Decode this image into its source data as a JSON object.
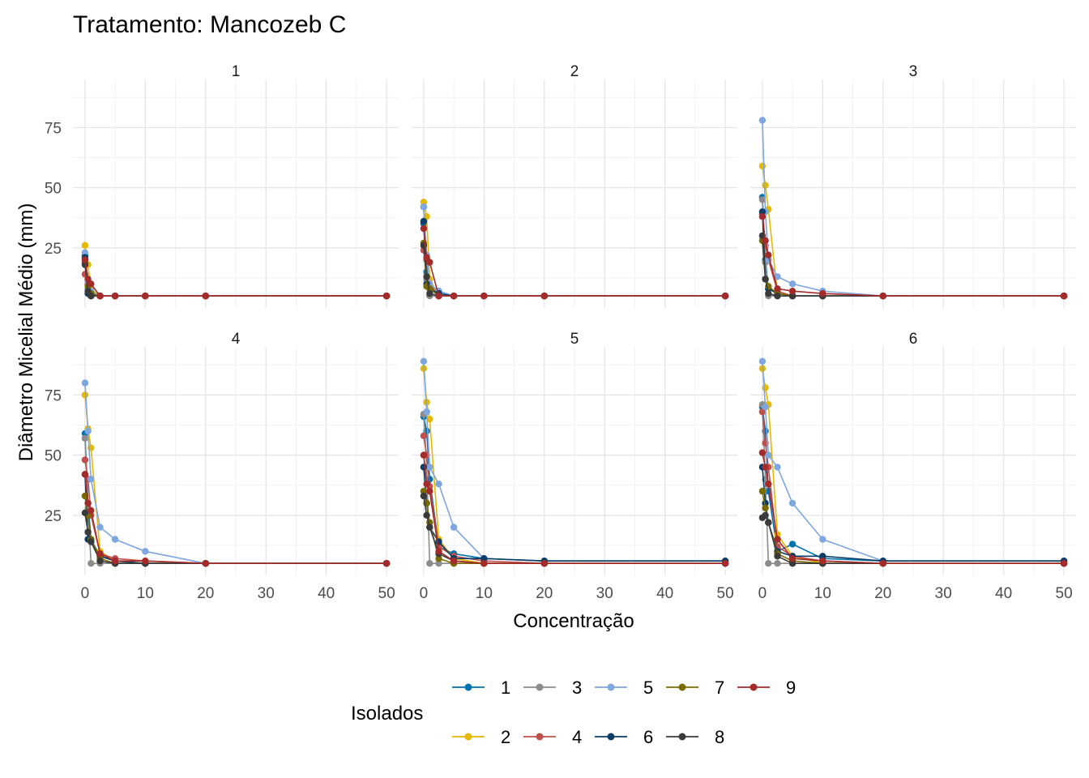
{
  "chart_data": {
    "type": "line",
    "title": "Tratamento: Mancozeb C",
    "xlabel": "Concentração",
    "ylabel": "Diâmetro Micelial Médio (mm)",
    "xlim": [
      -2,
      52
    ],
    "ylim": [
      0,
      95
    ],
    "x_ticks": [
      0,
      10,
      20,
      30,
      40,
      50
    ],
    "y_ticks": [
      25,
      50,
      75
    ],
    "x": [
      0,
      0.5,
      1,
      2.5,
      5,
      10,
      20,
      50
    ],
    "grid": true,
    "legend": {
      "title": "Isolados",
      "position": "bottom"
    },
    "colors": {
      "1": "#0072B2",
      "2": "#E6B800",
      "3": "#8C8C8C",
      "4": "#C0504D",
      "5": "#7EA6E0",
      "6": "#0B3D66",
      "7": "#7A6B00",
      "8": "#3A3A3A",
      "9": "#A52A2A"
    },
    "legend_items": [
      "1",
      "3",
      "5",
      "7",
      "9",
      "2",
      "4",
      "6",
      "8"
    ],
    "panels": [
      {
        "label": "1",
        "series": [
          {
            "name": "1",
            "values": [
              22,
              10,
              5,
              5,
              5,
              5,
              5,
              5
            ]
          },
          {
            "name": "2",
            "values": [
              26,
              18,
              8,
              5,
              5,
              5,
              5,
              5
            ]
          },
          {
            "name": "3",
            "values": [
              20,
              8,
              5,
              5,
              5,
              5,
              5,
              5
            ]
          },
          {
            "name": "4",
            "values": [
              14,
              10,
              6,
              5,
              5,
              5,
              5,
              5
            ]
          },
          {
            "name": "5",
            "values": [
              23,
              11,
              7,
              5,
              5,
              5,
              5,
              5
            ]
          },
          {
            "name": "6",
            "values": [
              21,
              6,
              5,
              5,
              5,
              5,
              5,
              5
            ]
          },
          {
            "name": "7",
            "values": [
              19,
              9,
              6,
              5,
              5,
              5,
              5,
              5
            ]
          },
          {
            "name": "8",
            "values": [
              18,
              7,
              5,
              5,
              5,
              5,
              5,
              5
            ]
          },
          {
            "name": "9",
            "values": [
              20,
              12,
              10,
              5,
              5,
              5,
              5,
              5
            ]
          }
        ]
      },
      {
        "label": "2",
        "series": [
          {
            "name": "1",
            "values": [
              35,
              15,
              9,
              7,
              5,
              5,
              5,
              5
            ]
          },
          {
            "name": "2",
            "values": [
              44,
              38,
              12,
              5,
              5,
              5,
              5,
              5
            ]
          },
          {
            "name": "3",
            "values": [
              42,
              12,
              5,
              5,
              5,
              5,
              5,
              5
            ]
          },
          {
            "name": "4",
            "values": [
              24,
              20,
              10,
              5,
              5,
              5,
              5,
              5
            ]
          },
          {
            "name": "5",
            "values": [
              42,
              22,
              10,
              7,
              5,
              5,
              5,
              5
            ]
          },
          {
            "name": "6",
            "values": [
              36,
              10,
              8,
              6,
              5,
              5,
              5,
              5
            ]
          },
          {
            "name": "7",
            "values": [
              27,
              9,
              8,
              5,
              5,
              5,
              5,
              5
            ]
          },
          {
            "name": "8",
            "values": [
              26,
              13,
              6,
              5,
              5,
              5,
              5,
              5
            ]
          },
          {
            "name": "9",
            "values": [
              33,
              21,
              19,
              5,
              5,
              5,
              5,
              5
            ]
          }
        ]
      },
      {
        "label": "3",
        "series": [
          {
            "name": "1",
            "values": [
              46,
              20,
              8,
              6,
              5,
              5,
              5,
              5
            ]
          },
          {
            "name": "2",
            "values": [
              59,
              51,
              41,
              6,
              5,
              5,
              5,
              5
            ]
          },
          {
            "name": "3",
            "values": [
              45,
              19,
              5,
              5,
              5,
              5,
              5,
              5
            ]
          },
          {
            "name": "4",
            "values": [
              39,
              26,
              20,
              7,
              5,
              5,
              5,
              5
            ]
          },
          {
            "name": "5",
            "values": [
              78,
              40,
              20,
              13,
              10,
              7,
              5,
              5
            ]
          },
          {
            "name": "6",
            "values": [
              40,
              12,
              8,
              6,
              5,
              5,
              5,
              5
            ]
          },
          {
            "name": "7",
            "values": [
              28,
              12,
              9,
              6,
              5,
              5,
              5,
              5
            ]
          },
          {
            "name": "8",
            "values": [
              30,
              12,
              6,
              5,
              5,
              5,
              5,
              5
            ]
          },
          {
            "name": "9",
            "values": [
              38,
              28,
              22,
              8,
              7,
              6,
              5,
              5
            ]
          }
        ]
      },
      {
        "label": "4",
        "series": [
          {
            "name": "1",
            "values": [
              59,
              30,
              15,
              8,
              6,
              5,
              5,
              5
            ]
          },
          {
            "name": "2",
            "values": [
              75,
              61,
              53,
              10,
              6,
              5,
              5,
              5
            ]
          },
          {
            "name": "3",
            "values": [
              57,
              28,
              5,
              5,
              5,
              5,
              5,
              5
            ]
          },
          {
            "name": "4",
            "values": [
              48,
              40,
              25,
              9,
              7,
              6,
              5,
              5
            ]
          },
          {
            "name": "5",
            "values": [
              80,
              60,
              40,
              20,
              15,
              10,
              5,
              5
            ]
          },
          {
            "name": "6",
            "values": [
              42,
              15,
              14,
              8,
              6,
              5,
              5,
              5
            ]
          },
          {
            "name": "7",
            "values": [
              33,
              25,
              15,
              7,
              5,
              5,
              5,
              5
            ]
          },
          {
            "name": "8",
            "values": [
              26,
              18,
              14,
              6,
              5,
              5,
              5,
              5
            ]
          },
          {
            "name": "9",
            "values": [
              42,
              30,
              27,
              9,
              6,
              6,
              5,
              5
            ]
          }
        ]
      },
      {
        "label": "5",
        "series": [
          {
            "name": "1",
            "values": [
              66,
              60,
              40,
              12,
              9,
              7,
              6,
              6
            ]
          },
          {
            "name": "2",
            "values": [
              86,
              72,
              65,
              15,
              7,
              5,
              5,
              5
            ]
          },
          {
            "name": "3",
            "values": [
              67,
              45,
              5,
              5,
              5,
              5,
              5,
              5
            ]
          },
          {
            "name": "4",
            "values": [
              58,
              50,
              37,
              12,
              8,
              6,
              5,
              5
            ]
          },
          {
            "name": "5",
            "values": [
              89,
              68,
              45,
              38,
              20,
              7,
              6,
              6
            ]
          },
          {
            "name": "6",
            "values": [
              45,
              30,
              20,
              14,
              7,
              7,
              6,
              6
            ]
          },
          {
            "name": "7",
            "values": [
              35,
              30,
              22,
              7,
              5,
              5,
              5,
              5
            ]
          },
          {
            "name": "8",
            "values": [
              33,
              25,
              20,
              9,
              6,
              5,
              5,
              5
            ]
          },
          {
            "name": "9",
            "values": [
              50,
              38,
              35,
              10,
              6,
              5,
              5,
              5
            ]
          }
        ]
      },
      {
        "label": "6",
        "series": [
          {
            "name": "1",
            "values": [
              70,
              60,
              35,
              10,
              13,
              7,
              6,
              6
            ]
          },
          {
            "name": "2",
            "values": [
              86,
              78,
              71,
              17,
              8,
              5,
              5,
              5
            ]
          },
          {
            "name": "3",
            "values": [
              71,
              40,
              5,
              5,
              5,
              5,
              5,
              5
            ]
          },
          {
            "name": "4",
            "values": [
              68,
              55,
              45,
              12,
              8,
              6,
              5,
              5
            ]
          },
          {
            "name": "5",
            "values": [
              89,
              70,
              50,
              45,
              30,
              15,
              6,
              6
            ]
          },
          {
            "name": "6",
            "values": [
              45,
              30,
              22,
              10,
              8,
              8,
              6,
              6
            ]
          },
          {
            "name": "7",
            "values": [
              35,
              28,
              22,
              9,
              6,
              5,
              5,
              5
            ]
          },
          {
            "name": "8",
            "values": [
              24,
              25,
              22,
              8,
              5,
              5,
              5,
              5
            ]
          },
          {
            "name": "9",
            "values": [
              51,
              45,
              38,
              15,
              7,
              6,
              5,
              5
            ]
          }
        ]
      }
    ]
  }
}
